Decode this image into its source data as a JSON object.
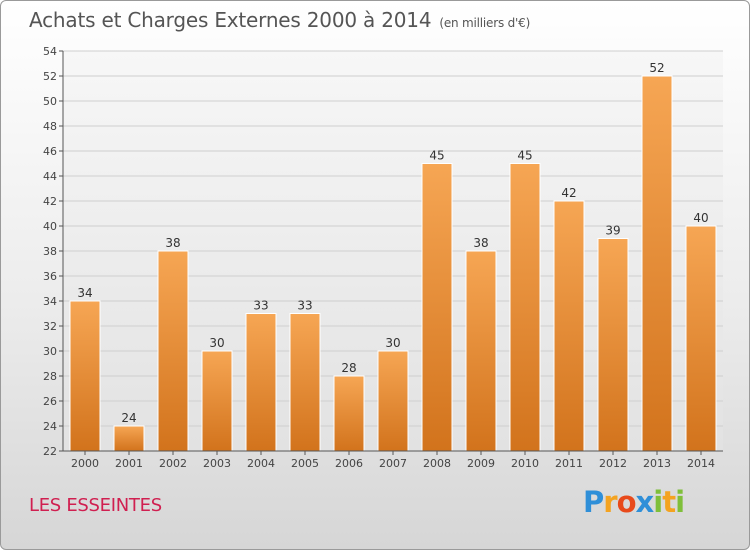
{
  "header": {
    "title": "Achats et Charges Externes 2000 à 2014",
    "subtitle": "(en milliers d'€)"
  },
  "footer": {
    "commune": "LES ESSEINTES",
    "logo_letters": [
      "P",
      "r",
      "o",
      "x",
      "i",
      "t",
      "i"
    ],
    "logo_colors": [
      "#2f8fd8",
      "#f4a320",
      "#e84a1b",
      "#2f8fd8",
      "#7fbf3a",
      "#f4a320",
      "#7fbf3a"
    ]
  },
  "colors": {
    "bar_top": "#f6a654",
    "bar_bottom": "#d2731c",
    "grid": "#cfcfcf",
    "axis": "#555555"
  },
  "chart_data": {
    "type": "bar",
    "categories": [
      "2000",
      "2001",
      "2002",
      "2003",
      "2004",
      "2005",
      "2006",
      "2007",
      "2008",
      "2009",
      "2010",
      "2011",
      "2012",
      "2013",
      "2014"
    ],
    "values": [
      34,
      24,
      38,
      30,
      33,
      33,
      28,
      30,
      45,
      38,
      45,
      42,
      39,
      52,
      40
    ],
    "title": "Achats et Charges Externes 2000 à 2014",
    "subtitle": "(en milliers d'€)",
    "ylim": [
      22,
      54
    ],
    "yticks": [
      22,
      24,
      26,
      28,
      30,
      32,
      34,
      36,
      38,
      40,
      42,
      44,
      46,
      48,
      50,
      52,
      54
    ],
    "grid": true,
    "legend": "none"
  }
}
